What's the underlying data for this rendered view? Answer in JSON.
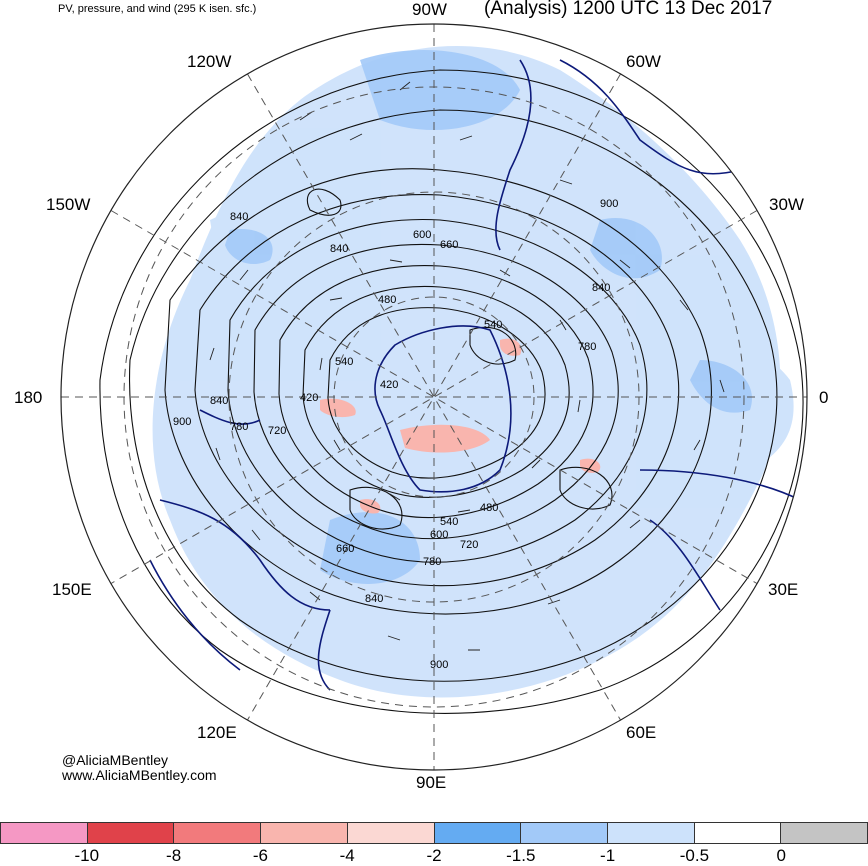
{
  "header": {
    "title_left": "PV, pressure, and wind (295 K isen. sfc.)",
    "title_right": "(Analysis) 1200 UTC 13 Dec 2017"
  },
  "longitude_labels": {
    "w90": "90W",
    "w60": "60W",
    "w30": "30W",
    "e0": "0",
    "e30": "30E",
    "e60": "60E",
    "e90": "90E",
    "e120": "120E",
    "e150": "150E",
    "d180": "180",
    "w150": "150W",
    "w120": "120W"
  },
  "contour_labels": [
    "840",
    "840",
    "600",
    "660",
    "480",
    "540",
    "540",
    "780",
    "840",
    "900",
    "420",
    "420",
    "840",
    "900",
    "780",
    "720",
    "480",
    "540",
    "600",
    "720",
    "660",
    "780",
    "840",
    "900"
  ],
  "credits": {
    "handle": "@AliciaMBentley",
    "website": "www.AliciaMBentley.com"
  },
  "colorbar": {
    "colors": [
      "#f598c4",
      "#e0424a",
      "#f27a7c",
      "#f9b5ae",
      "#fbd8d3",
      "#64abf2",
      "#a2c9f8",
      "#cde2fb",
      "#ffffff",
      "#c4c4c4"
    ],
    "ticks": [
      "-10",
      "-8",
      "-6",
      "-4",
      "-2",
      "-1.5",
      "-1",
      "-0.5",
      "0"
    ]
  },
  "map_colors": {
    "land_outline": "#0d1a7a",
    "fill_light_blue": "#cde2fb",
    "fill_mid_blue": "#a2c9f8",
    "fill_pink": "#f9b5ae"
  }
}
